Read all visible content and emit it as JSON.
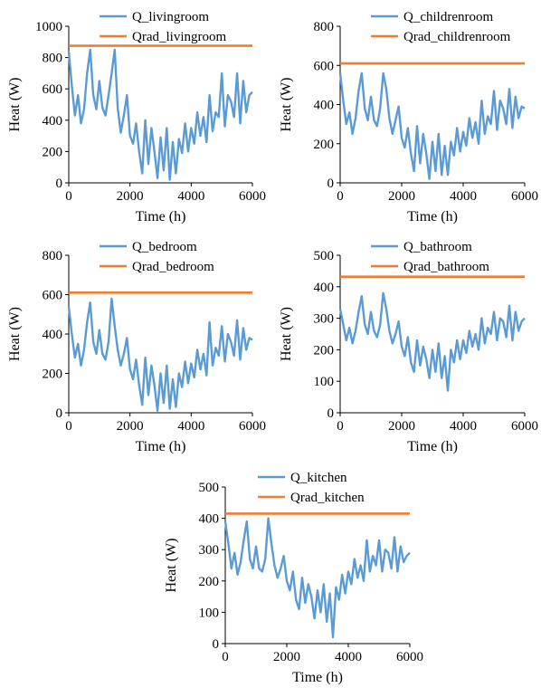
{
  "colors": {
    "heat_series": "#5B9BD5",
    "rad_series": "#ED7D31",
    "axis": "#000000",
    "background": "#FFFFFF"
  },
  "chart_data": [
    {
      "id": "livingroom",
      "type": "line",
      "xlabel": "Time (h)",
      "ylabel": "Heat (W)",
      "xlim": [
        0,
        6000
      ],
      "ylim": [
        0,
        1000
      ],
      "xticks": [
        "0",
        "2000",
        "4000",
        "6000"
      ],
      "yticks": [
        "0",
        "200",
        "400",
        "600",
        "800",
        "1000"
      ],
      "grid": false,
      "legend": "top-center",
      "series": [
        {
          "name": "Q_livingroom",
          "color": "#5B9BD5",
          "x": [
            0,
            100,
            200,
            300,
            400,
            500,
            600,
            700,
            800,
            900,
            1000,
            1100,
            1200,
            1300,
            1400,
            1500,
            1600,
            1700,
            1800,
            1900,
            2000,
            2100,
            2200,
            2300,
            2400,
            2500,
            2600,
            2700,
            2800,
            2900,
            3000,
            3100,
            3200,
            3300,
            3400,
            3500,
            3600,
            3700,
            3800,
            3900,
            4000,
            4100,
            4200,
            4300,
            4400,
            4500,
            4600,
            4700,
            4800,
            4900,
            5000,
            5100,
            5200,
            5300,
            5400,
            5500,
            5600,
            5700,
            5800,
            5900,
            6000
          ],
          "y": [
            840,
            620,
            430,
            560,
            380,
            470,
            700,
            850,
            560,
            470,
            650,
            480,
            430,
            560,
            700,
            850,
            480,
            320,
            430,
            560,
            300,
            250,
            380,
            200,
            60,
            400,
            120,
            350,
            200,
            30,
            290,
            80,
            350,
            20,
            260,
            60,
            280,
            190,
            380,
            200,
            350,
            250,
            450,
            300,
            420,
            260,
            560,
            330,
            450,
            420,
            700,
            360,
            560,
            520,
            420,
            700,
            380,
            650,
            450,
            560,
            580
          ]
        },
        {
          "name": "Qrad_livingroom",
          "color": "#ED7D31",
          "x": [
            0,
            6000
          ],
          "y": [
            875,
            875
          ]
        }
      ]
    },
    {
      "id": "childrenroom",
      "type": "line",
      "xlabel": "Time (h)",
      "ylabel": "Heat (W)",
      "xlim": [
        0,
        6000
      ],
      "ylim": [
        0,
        800
      ],
      "xticks": [
        "0",
        "2000",
        "4000",
        "6000"
      ],
      "yticks": [
        "0",
        "200",
        "400",
        "600",
        "800"
      ],
      "grid": false,
      "legend": "top-center",
      "series": [
        {
          "name": "Q_childrenroom",
          "color": "#5B9BD5",
          "x": [
            0,
            100,
            200,
            300,
            400,
            500,
            600,
            700,
            800,
            900,
            1000,
            1100,
            1200,
            1300,
            1400,
            1500,
            1600,
            1700,
            1800,
            1900,
            2000,
            2100,
            2200,
            2300,
            2400,
            2500,
            2600,
            2700,
            2800,
            2900,
            3000,
            3100,
            3200,
            3300,
            3400,
            3500,
            3600,
            3700,
            3800,
            3900,
            4000,
            4100,
            4200,
            4300,
            4400,
            4500,
            4600,
            4700,
            4800,
            4900,
            5000,
            5100,
            5200,
            5300,
            5400,
            5500,
            5600,
            5700,
            5800,
            5900,
            6000
          ],
          "y": [
            560,
            420,
            300,
            360,
            250,
            330,
            470,
            560,
            380,
            320,
            440,
            320,
            290,
            380,
            560,
            480,
            330,
            250,
            320,
            390,
            230,
            180,
            280,
            150,
            60,
            290,
            100,
            250,
            150,
            20,
            210,
            60,
            250,
            40,
            190,
            40,
            210,
            140,
            280,
            160,
            260,
            190,
            330,
            230,
            310,
            200,
            420,
            250,
            340,
            300,
            470,
            270,
            420,
            380,
            300,
            480,
            280,
            440,
            330,
            390,
            380
          ]
        },
        {
          "name": "Qrad_childrenroom",
          "color": "#ED7D31",
          "x": [
            0,
            6000
          ],
          "y": [
            610,
            610
          ]
        }
      ]
    },
    {
      "id": "bedroom",
      "type": "line",
      "xlabel": "Time (h)",
      "ylabel": "Heat (W)",
      "xlim": [
        0,
        6000
      ],
      "ylim": [
        0,
        800
      ],
      "xticks": [
        "0",
        "2000",
        "4000",
        "6000"
      ],
      "yticks": [
        "0",
        "200",
        "400",
        "600",
        "800"
      ],
      "grid": false,
      "legend": "top-center",
      "series": [
        {
          "name": "Q_bedroom",
          "color": "#5B9BD5",
          "x": [
            0,
            100,
            200,
            300,
            400,
            500,
            600,
            700,
            800,
            900,
            1000,
            1100,
            1200,
            1300,
            1400,
            1500,
            1600,
            1700,
            1800,
            1900,
            2000,
            2100,
            2200,
            2300,
            2400,
            2500,
            2600,
            2700,
            2800,
            2900,
            3000,
            3100,
            3200,
            3300,
            3400,
            3500,
            3600,
            3700,
            3800,
            3900,
            4000,
            4100,
            4200,
            4300,
            4400,
            4500,
            4600,
            4700,
            4800,
            4900,
            5000,
            5100,
            5200,
            5300,
            5400,
            5500,
            5600,
            5700,
            5800,
            5900,
            6000
          ],
          "y": [
            540,
            400,
            280,
            350,
            240,
            320,
            460,
            560,
            360,
            300,
            420,
            300,
            270,
            360,
            580,
            440,
            320,
            240,
            300,
            380,
            220,
            170,
            270,
            140,
            40,
            280,
            90,
            240,
            140,
            10,
            200,
            50,
            240,
            20,
            170,
            30,
            200,
            130,
            260,
            150,
            250,
            180,
            320,
            220,
            300,
            190,
            460,
            240,
            330,
            290,
            440,
            260,
            400,
            360,
            290,
            470,
            270,
            430,
            320,
            380,
            370
          ]
        },
        {
          "name": "Qrad_bedroom",
          "color": "#ED7D31",
          "x": [
            0,
            6000
          ],
          "y": [
            610,
            610
          ]
        }
      ]
    },
    {
      "id": "bathroom",
      "type": "line",
      "xlabel": "Time (h)",
      "ylabel": "Heat (W)",
      "xlim": [
        0,
        6000
      ],
      "ylim": [
        0,
        500
      ],
      "xticks": [
        "0",
        "2000",
        "4000",
        "6000"
      ],
      "yticks": [
        "0",
        "100",
        "200",
        "300",
        "400",
        "500"
      ],
      "grid": false,
      "legend": "top-center",
      "series": [
        {
          "name": "Q_bathroom",
          "color": "#5B9BD5",
          "x": [
            0,
            100,
            200,
            300,
            400,
            500,
            600,
            700,
            800,
            900,
            1000,
            1100,
            1200,
            1300,
            1400,
            1500,
            1600,
            1700,
            1800,
            1900,
            2000,
            2100,
            2200,
            2300,
            2400,
            2500,
            2600,
            2700,
            2800,
            2900,
            3000,
            3100,
            3200,
            3300,
            3400,
            3500,
            3600,
            3700,
            3800,
            3900,
            4000,
            4100,
            4200,
            4300,
            4400,
            4500,
            4600,
            4700,
            4800,
            4900,
            5000,
            5100,
            5200,
            5300,
            5400,
            5500,
            5600,
            5700,
            5800,
            5900,
            6000
          ],
          "y": [
            330,
            280,
            230,
            270,
            220,
            260,
            320,
            370,
            280,
            250,
            320,
            260,
            240,
            280,
            380,
            330,
            260,
            220,
            250,
            290,
            210,
            180,
            240,
            160,
            130,
            230,
            150,
            210,
            170,
            110,
            200,
            130,
            220,
            110,
            180,
            70,
            200,
            160,
            230,
            170,
            230,
            190,
            260,
            210,
            250,
            200,
            300,
            220,
            270,
            250,
            320,
            230,
            300,
            290,
            240,
            340,
            230,
            320,
            260,
            290,
            300
          ]
        },
        {
          "name": "Qrad_bathroom",
          "color": "#ED7D31",
          "x": [
            0,
            6000
          ],
          "y": [
            432,
            432
          ]
        }
      ]
    },
    {
      "id": "kitchen",
      "type": "line",
      "xlabel": "Time (h)",
      "ylabel": "Heat (W)",
      "xlim": [
        0,
        6000
      ],
      "ylim": [
        0,
        500
      ],
      "xticks": [
        "0",
        "2000",
        "4000",
        "6000"
      ],
      "yticks": [
        "0",
        "100",
        "200",
        "300",
        "400",
        "500"
      ],
      "grid": false,
      "legend": "top-center",
      "series": [
        {
          "name": "Q_kitchen",
          "color": "#5B9BD5",
          "x": [
            0,
            100,
            200,
            300,
            400,
            500,
            600,
            700,
            800,
            900,
            1000,
            1100,
            1200,
            1300,
            1400,
            1500,
            1600,
            1700,
            1800,
            1900,
            2000,
            2100,
            2200,
            2300,
            2400,
            2500,
            2600,
            2700,
            2800,
            2900,
            3000,
            3100,
            3200,
            3300,
            3400,
            3500,
            3600,
            3700,
            3800,
            3900,
            4000,
            4100,
            4200,
            4300,
            4400,
            4500,
            4600,
            4700,
            4800,
            4900,
            5000,
            5100,
            5200,
            5300,
            5400,
            5500,
            5600,
            5700,
            5800,
            5900,
            6000
          ],
          "y": [
            390,
            320,
            240,
            290,
            220,
            260,
            330,
            390,
            270,
            240,
            310,
            240,
            230,
            270,
            400,
            320,
            250,
            210,
            240,
            280,
            200,
            170,
            230,
            140,
            110,
            210,
            130,
            190,
            150,
            80,
            170,
            100,
            190,
            70,
            160,
            20,
            180,
            140,
            220,
            160,
            230,
            190,
            270,
            210,
            250,
            200,
            330,
            230,
            280,
            250,
            330,
            230,
            300,
            290,
            240,
            340,
            230,
            310,
            260,
            280,
            290
          ]
        },
        {
          "name": "Qrad_kitchen",
          "color": "#ED7D31",
          "x": [
            0,
            6000
          ],
          "y": [
            415,
            415
          ]
        }
      ]
    }
  ]
}
